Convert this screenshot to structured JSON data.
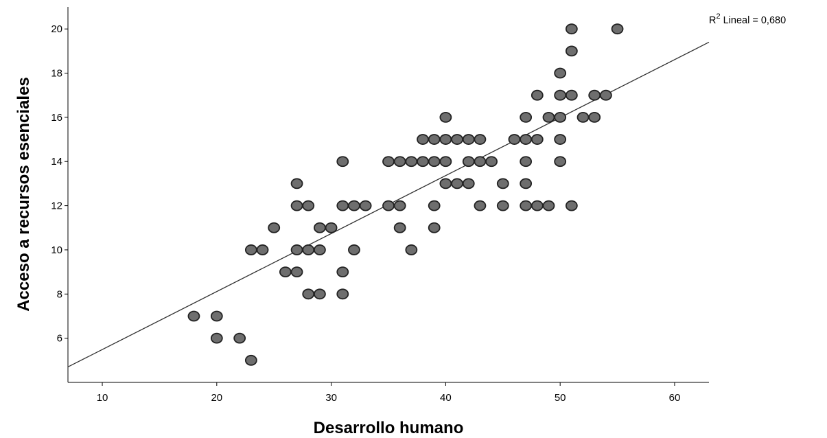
{
  "chart_data": {
    "type": "scatter",
    "title": "",
    "xlabel": "Desarrollo humano",
    "ylabel": "Acceso a recursos esenciales",
    "xlim": [
      7,
      63
    ],
    "ylim": [
      4,
      21
    ],
    "xticks": [
      10,
      20,
      30,
      40,
      50,
      60
    ],
    "yticks": [
      6,
      8,
      10,
      12,
      14,
      16,
      18,
      20
    ],
    "grid": false,
    "marker_color": "#6e6e6e",
    "marker_edge_color": "#222222",
    "fit_line": {
      "label_prefix": "R",
      "label_sup": "2",
      "label_suffix": " Lineal = 0,680",
      "r_squared": 0.68,
      "x": [
        7,
        63
      ],
      "y": [
        4.7,
        19.4
      ],
      "color": "#333333"
    },
    "points": [
      [
        18,
        7
      ],
      [
        20,
        7
      ],
      [
        20,
        6
      ],
      [
        22,
        6
      ],
      [
        23,
        5
      ],
      [
        23,
        10
      ],
      [
        24,
        10
      ],
      [
        25,
        11
      ],
      [
        26,
        9
      ],
      [
        27,
        13
      ],
      [
        27,
        12
      ],
      [
        27,
        10
      ],
      [
        27,
        9
      ],
      [
        28,
        12
      ],
      [
        28,
        10
      ],
      [
        28,
        8
      ],
      [
        29,
        8
      ],
      [
        29,
        11
      ],
      [
        29,
        10
      ],
      [
        30,
        11
      ],
      [
        31,
        14
      ],
      [
        31,
        12
      ],
      [
        31,
        9
      ],
      [
        31,
        8
      ],
      [
        32,
        12
      ],
      [
        32,
        10
      ],
      [
        33,
        12
      ],
      [
        35,
        14
      ],
      [
        35,
        12
      ],
      [
        36,
        14
      ],
      [
        36,
        12
      ],
      [
        36,
        11
      ],
      [
        37,
        14
      ],
      [
        37,
        10
      ],
      [
        38,
        15
      ],
      [
        38,
        14
      ],
      [
        39,
        15
      ],
      [
        39,
        14
      ],
      [
        39,
        12
      ],
      [
        39,
        11
      ],
      [
        40,
        16
      ],
      [
        40,
        15
      ],
      [
        40,
        14
      ],
      [
        40,
        13
      ],
      [
        41,
        15
      ],
      [
        41,
        13
      ],
      [
        42,
        15
      ],
      [
        42,
        14
      ],
      [
        42,
        13
      ],
      [
        43,
        15
      ],
      [
        43,
        14
      ],
      [
        43,
        12
      ],
      [
        44,
        14
      ],
      [
        45,
        13
      ],
      [
        45,
        12
      ],
      [
        46,
        15
      ],
      [
        47,
        16
      ],
      [
        47,
        15
      ],
      [
        47,
        14
      ],
      [
        47,
        13
      ],
      [
        47,
        12
      ],
      [
        48,
        17
      ],
      [
        48,
        15
      ],
      [
        48,
        12
      ],
      [
        49,
        16
      ],
      [
        49,
        12
      ],
      [
        50,
        18
      ],
      [
        50,
        17
      ],
      [
        50,
        16
      ],
      [
        50,
        15
      ],
      [
        50,
        14
      ],
      [
        51,
        20
      ],
      [
        51,
        19
      ],
      [
        51,
        17
      ],
      [
        51,
        12
      ],
      [
        52,
        16
      ],
      [
        53,
        17
      ],
      [
        53,
        16
      ],
      [
        54,
        17
      ],
      [
        55,
        20
      ]
    ]
  }
}
